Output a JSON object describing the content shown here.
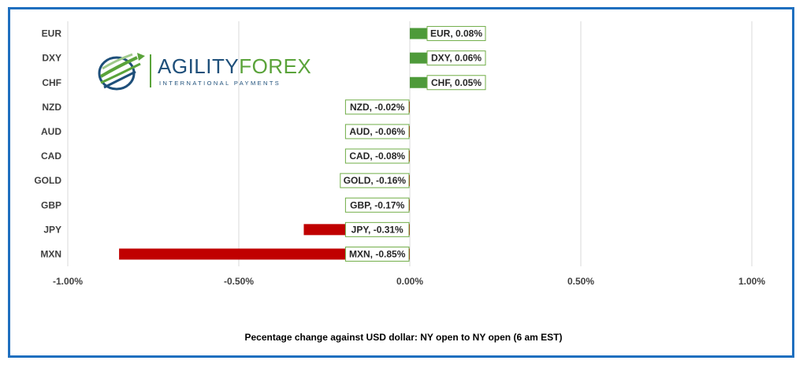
{
  "chart_data": {
    "type": "bar",
    "orientation": "horizontal",
    "categories": [
      "EUR",
      "DXY",
      "CHF",
      "NZD",
      "AUD",
      "CAD",
      "GOLD",
      "GBP",
      "JPY",
      "MXN"
    ],
    "values": [
      0.08,
      0.06,
      0.05,
      -0.02,
      -0.06,
      -0.08,
      -0.16,
      -0.17,
      -0.31,
      -0.85
    ],
    "data_labels": [
      "EUR, 0.08%",
      "DXY, 0.06%",
      "CHF, 0.05%",
      "NZD, -0.02%",
      "AUD, -0.06%",
      "CAD, -0.08%",
      "GOLD, -0.16%",
      "GBP, -0.17%",
      "JPY, -0.31%",
      "MXN, -0.85%"
    ],
    "xlim": [
      -1.0,
      1.0
    ],
    "x_ticks": [
      -1.0,
      -0.5,
      0.0,
      0.5,
      1.0
    ],
    "x_tick_labels": [
      "-1.00%",
      "-0.50%",
      "0.00%",
      "0.50%",
      "1.00%"
    ],
    "xlabel": "Pecentage change against USD dollar:  NY open to NY open  (6 am EST)",
    "grid": true,
    "positive_color": "#4e9a3a",
    "negative_color": "#c00000",
    "legend": "none"
  },
  "logo": {
    "word_part1": "AGILITY",
    "word_part2": "FOREX",
    "subtitle": "INTERNATIONAL PAYMENTS"
  },
  "colors": {
    "frame": "#1f6fbf",
    "gridline": "#d9d9d9",
    "label_border": "#70ad47"
  }
}
